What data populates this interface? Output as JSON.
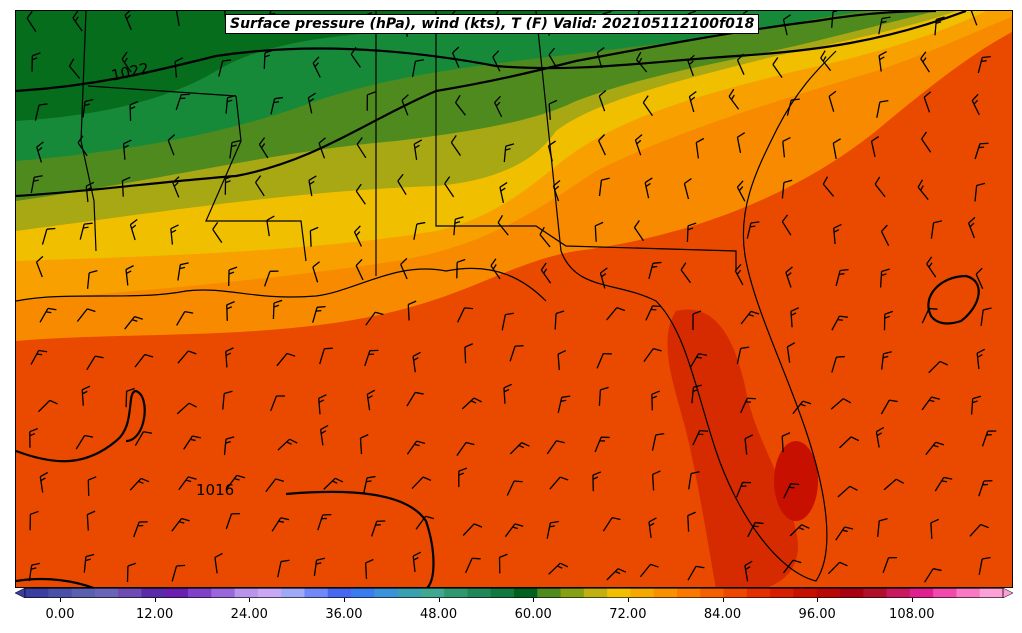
{
  "title": "Surface pressure (hPa), wind (kts), T (F) Valid: 202105112100f018",
  "isobar_labels": [
    "1022",
    "1016"
  ],
  "colorbar": {
    "ticks": [
      "0.00",
      "12.00",
      "24.00",
      "36.00",
      "48.00",
      "60.00",
      "72.00",
      "84.00",
      "96.00",
      "108.00"
    ],
    "colors": [
      "#3a3ea0",
      "#4a4fa8",
      "#5a5fb0",
      "#6a64b8",
      "#6e4ab4",
      "#5a2aa8",
      "#6a1fb0",
      "#8040c8",
      "#9a66dc",
      "#b894ec",
      "#c8a8f4",
      "#a0a8f8",
      "#7088f8",
      "#4868f0",
      "#3a7cf0",
      "#3a92d8",
      "#38a0b0",
      "#40a890",
      "#309870",
      "#208858",
      "#107840",
      "#006020",
      "#4e8a1e",
      "#86a014",
      "#c0b010",
      "#f0c000",
      "#f4a800",
      "#f89000",
      "#f87800",
      "#f46000",
      "#ee4800",
      "#e43000",
      "#d81e00",
      "#c81000",
      "#b80808",
      "#a80010",
      "#b0102a",
      "#c81860",
      "#e02090",
      "#f04aac",
      "#f878c4",
      "#fca0d8"
    ]
  },
  "colors": {
    "dark_green": "#056d1c",
    "green": "#178a3a",
    "olive": "#4e8a1e",
    "yellow_olive": "#a8a814",
    "yellow": "#f0c000",
    "orange_light": "#f8a000",
    "orange": "#f88a00",
    "orange_dark": "#f46000",
    "red_orange": "#ea4a00",
    "red": "#d62a00"
  }
}
